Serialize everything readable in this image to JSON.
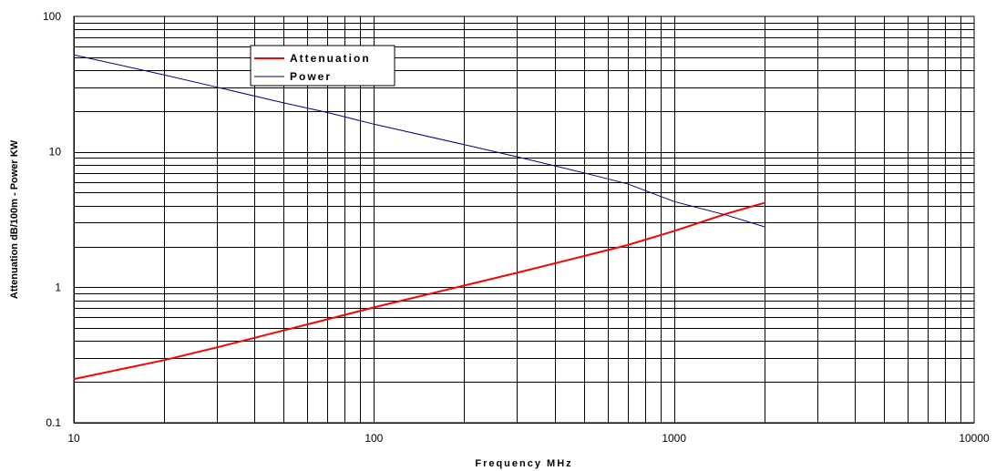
{
  "chart_data": {
    "type": "line",
    "xlabel": "Frequency MHz",
    "ylabel": "Attenuation dB/100m - Power KW",
    "x_scale": "log",
    "y_scale": "log",
    "xlim": [
      10,
      10000
    ],
    "ylim": [
      0.1,
      100
    ],
    "x_ticks": [
      "10",
      "100",
      "1000",
      "10000"
    ],
    "y_ticks": [
      "0.1",
      "1",
      "10",
      "100"
    ],
    "grid": true,
    "legend_position": "top-left",
    "series": [
      {
        "name": "Attenuation",
        "color": "#ff0000",
        "x": [
          10,
          20,
          30,
          50,
          70,
          100,
          200,
          300,
          500,
          700,
          1000,
          1500,
          2000
        ],
        "y": [
          0.21,
          0.29,
          0.36,
          0.48,
          0.58,
          0.71,
          1.03,
          1.28,
          1.7,
          2.05,
          2.6,
          3.5,
          4.2
        ]
      },
      {
        "name": "Power",
        "color": "#000080",
        "x": [
          10,
          20,
          30,
          50,
          70,
          100,
          200,
          300,
          500,
          700,
          1000,
          1500,
          2000
        ],
        "y": [
          52,
          37,
          30,
          23,
          19.5,
          16,
          11.3,
          9.2,
          7.0,
          5.8,
          4.3,
          3.4,
          2.8
        ]
      }
    ]
  }
}
